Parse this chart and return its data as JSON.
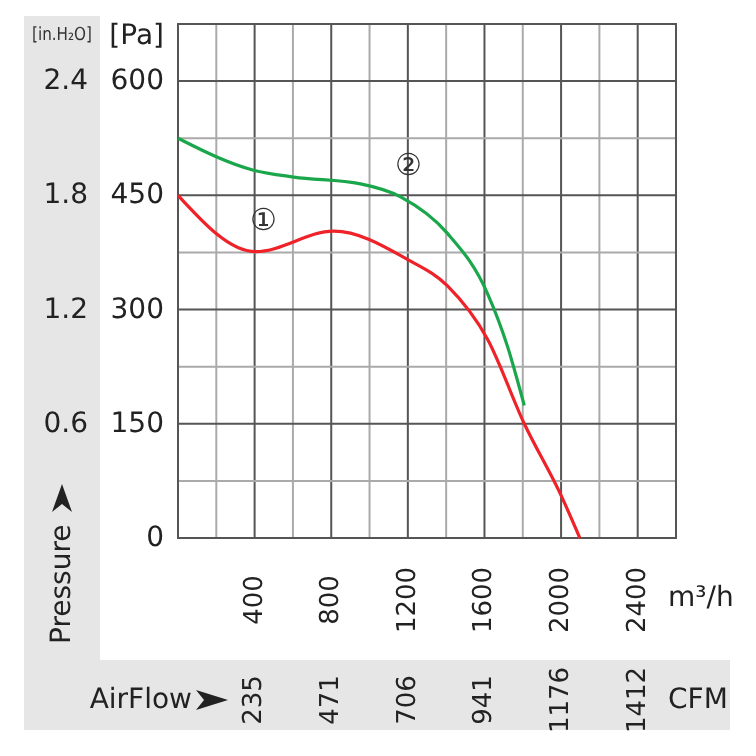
{
  "chart_data": {
    "type": "line",
    "xlabel": "m³/h",
    "ylabel": "[Pa]",
    "y2label": "[in.H₂O]",
    "x2label": "CFM",
    "annotations": [
      "Pressure",
      "AirFlow"
    ],
    "xlim": [
      0,
      2600
    ],
    "xticks": [
      400,
      800,
      1200,
      1600,
      2000,
      2400
    ],
    "x2lim": [
      0,
      1530
    ],
    "x2ticks": [
      235,
      471,
      706,
      941,
      1176,
      1412
    ],
    "ylim": [
      0,
      675
    ],
    "yticks": [
      0,
      150,
      300,
      450,
      600
    ],
    "y2lim": [
      0,
      2.7
    ],
    "y2ticks": [
      0.6,
      1.2,
      1.8,
      2.4
    ],
    "grid": true,
    "marker": "none",
    "line_style": "solid",
    "series": [
      {
        "name": "①",
        "color": "#ee2228",
        "x": [
          0,
          405,
          813,
          1197,
          1407,
          1616,
          1808,
          2000,
          2098
        ],
        "values": [
          450,
          376,
          403,
          366,
          331,
          261,
          150,
          56,
          0
        ]
      },
      {
        "name": "②",
        "color": "#1aa64a",
        "x": [
          0,
          394,
          604,
          953,
          1162,
          1407,
          1616,
          1721,
          1808
        ],
        "values": [
          525,
          483,
          474,
          465,
          448,
          400,
          321,
          251,
          174
        ]
      }
    ]
  }
}
